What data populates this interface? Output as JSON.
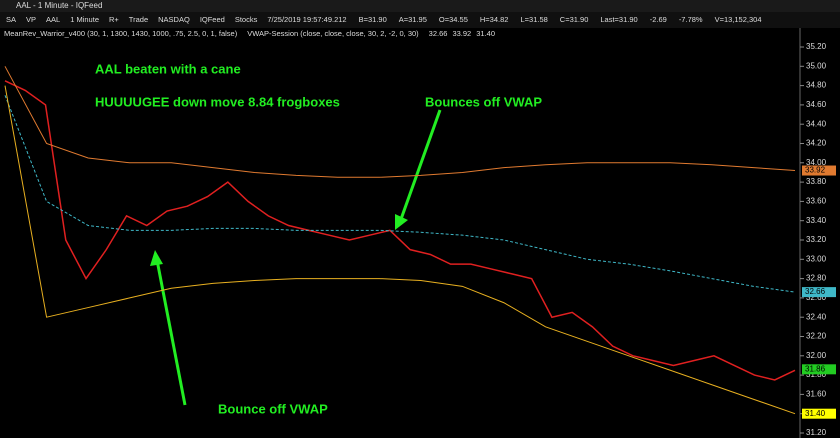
{
  "window": {
    "title": "AAL - 1 Minute - IQFeed"
  },
  "toolbar": [
    "SA",
    "VP",
    "AAL",
    "1 Minute",
    "R+",
    "Trade",
    "NASDAQ",
    "IQFeed",
    "Stocks",
    "7/25/2019 19:57:49.212",
    "B=31.90",
    "A=31.95",
    "O=34.55",
    "H=34.82",
    "L=31.58",
    "C=31.90",
    "Last=31.90",
    "-2.69",
    "-7.78%",
    "V=13,152,304"
  ],
  "indicators": {
    "mean_rev": "MeanRev_Warrior_v400 (30, 1, 1300, 1430, 1000, .75, 2.5, 0, 1, false)",
    "vwap": "VWAP-Session (close, close, close, 30, 2, -2, 0, 30)",
    "readouts": [
      "32.66",
      "33.92",
      "31.40"
    ]
  },
  "chart_data": {
    "type": "line",
    "annotations": [
      "AAL beaten with a cane",
      "HUUUUGEE down move 8.84 frogboxes",
      "Bounces off VWAP",
      "Bounce off VWAP"
    ],
    "ylim": [
      31.2,
      35.2
    ],
    "yticks": [
      {
        "value": 35.2,
        "label": "35.20"
      },
      {
        "value": 35,
        "label": "35.00"
      },
      {
        "value": 34.8,
        "label": "34.80"
      },
      {
        "value": 34.6,
        "label": "34.60"
      },
      {
        "value": 34.4,
        "label": "34.40"
      },
      {
        "value": 34.2,
        "label": "34.20"
      },
      {
        "value": 34,
        "label": "34.00"
      },
      {
        "value": 33.8,
        "label": "33.80"
      },
      {
        "value": 33.6,
        "label": "33.60"
      },
      {
        "value": 33.4,
        "label": "33.40"
      },
      {
        "value": 33.2,
        "label": "33.20"
      },
      {
        "value": 33,
        "label": "33.00"
      },
      {
        "value": 32.8,
        "label": "32.80"
      },
      {
        "value": 32.6,
        "label": "32.60"
      },
      {
        "value": 32.4,
        "label": "32.40"
      },
      {
        "value": 32.2,
        "label": "32.20"
      },
      {
        "value": 32,
        "label": "32.00"
      },
      {
        "value": 31.8,
        "label": "31.80"
      },
      {
        "value": 31.6,
        "label": "31.60"
      },
      {
        "value": 31.4,
        "label": "31.40"
      },
      {
        "value": 31.2,
        "label": "31.20"
      }
    ],
    "series": [
      {
        "name": "AAL",
        "color": "#e02020",
        "values": [
          34.85,
          34.75,
          34.6,
          33.2,
          32.8,
          33.1,
          33.45,
          33.35,
          33.5,
          33.55,
          33.65,
          33.8,
          33.6,
          33.45,
          33.35,
          33.3,
          33.25,
          33.2,
          33.25,
          33.3,
          33.1,
          33.05,
          32.95,
          32.95,
          32.9,
          32.85,
          32.8,
          32.4,
          32.45,
          32.3,
          32.1,
          32.0,
          31.95,
          31.9,
          31.95,
          32.0,
          31.9,
          31.8,
          31.75,
          31.85
        ]
      },
      {
        "name": "VWAP",
        "color": "#3fb8c8",
        "values": [
          34.7,
          33.6,
          33.35,
          33.3,
          33.3,
          33.32,
          33.32,
          33.3,
          33.3,
          33.3,
          33.28,
          33.25,
          33.2,
          33.1,
          33.0,
          32.95,
          32.88,
          32.8,
          32.72,
          32.66
        ]
      },
      {
        "name": "Upper",
        "color": "#e07a30",
        "values": [
          35.0,
          34.2,
          34.05,
          34.0,
          34.0,
          33.95,
          33.9,
          33.87,
          33.85,
          33.85,
          33.87,
          33.9,
          33.95,
          33.98,
          34.0,
          34.0,
          34.0,
          33.98,
          33.95,
          33.92
        ]
      },
      {
        "name": "Lower",
        "color": "#e8b020",
        "values": [
          34.8,
          32.4,
          32.5,
          32.6,
          32.7,
          32.75,
          32.78,
          32.8,
          32.8,
          32.8,
          32.78,
          32.72,
          32.55,
          32.3,
          32.15,
          32.0,
          31.85,
          31.7,
          31.55,
          31.4
        ]
      }
    ],
    "price_labels": [
      {
        "value": 33.92,
        "color": "#e07a30"
      },
      {
        "value": 32.66,
        "color": "#3fb8c8"
      },
      {
        "value": 31.86,
        "color": "#22cc22"
      },
      {
        "value": 31.4,
        "label": "31.40",
        "color": "#ffff00"
      }
    ]
  }
}
